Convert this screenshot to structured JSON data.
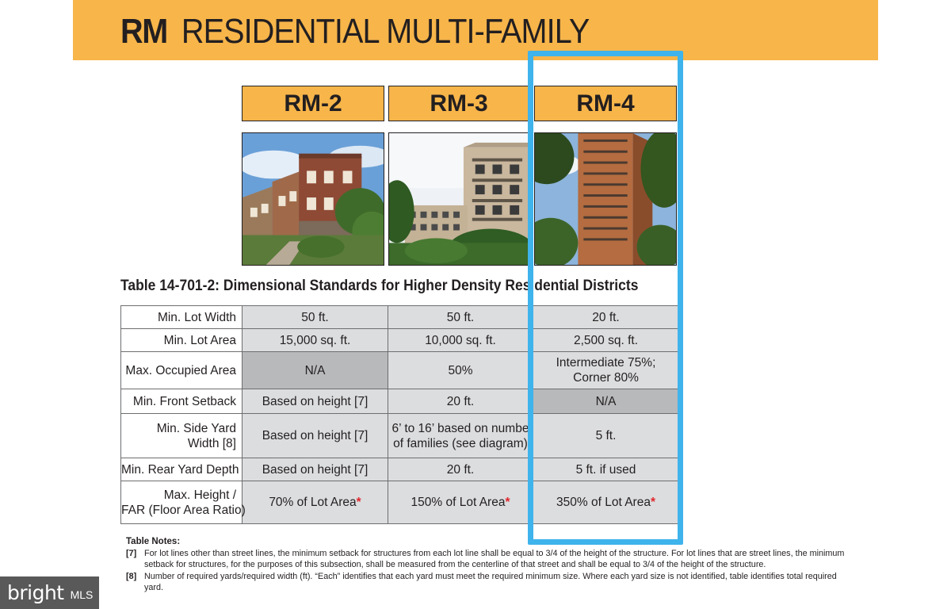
{
  "banner": {
    "abbreviation": "RM",
    "title": "RESIDENTIAL MULTI-FAMILY",
    "color": "#f7b54a"
  },
  "districts": [
    {
      "name": "RM-2",
      "photo_icon": "brick-rowhouse-photo"
    },
    {
      "name": "RM-3",
      "photo_icon": "mid-rise-apartment-photo"
    },
    {
      "name": "RM-4",
      "photo_icon": "high-rise-tower-photo"
    }
  ],
  "table": {
    "title": "Table 14-701-2: Dimensional Standards for Higher Density Residential Districts",
    "rows": [
      {
        "label": [
          "Min. Lot Width"
        ],
        "rm2": [
          "50 ft."
        ],
        "rm3": [
          "50 ft."
        ],
        "rm4": [
          "20 ft."
        ]
      },
      {
        "label": [
          "Min. Lot Area"
        ],
        "rm2": [
          "15,000 sq. ft."
        ],
        "rm3": [
          "10,000 sq. ft."
        ],
        "rm4": [
          "2,500 sq. ft."
        ]
      },
      {
        "label": [
          "Max. Occupied Area"
        ],
        "rm2": [
          "N/A"
        ],
        "rm3": [
          "50%"
        ],
        "rm4": [
          "Intermediate 75%;",
          "Corner 80%"
        ]
      },
      {
        "label": [
          "Min. Front Setback"
        ],
        "rm2": [
          "Based on height [7]"
        ],
        "rm3": [
          "20 ft."
        ],
        "rm4": [
          "N/A"
        ]
      },
      {
        "label": [
          "Min. Side Yard",
          "Width [8]"
        ],
        "rm2": [
          "Based on height [7]"
        ],
        "rm3": [
          "6’ to 16’ based on numbe",
          "of families (see diagram)"
        ],
        "rm4": [
          "5 ft."
        ]
      },
      {
        "label": [
          "Min. Rear Yard Depth"
        ],
        "rm2": [
          "Based on height [7]"
        ],
        "rm3": [
          "20 ft."
        ],
        "rm4": [
          "5 ft. if used"
        ]
      },
      {
        "label": [
          "Max. Height /",
          "FAR (Floor Area Ratio)"
        ],
        "rm2": [
          "70% of Lot Area"
        ],
        "rm3": [
          "150% of Lot Area"
        ],
        "rm4": [
          "350% of Lot Area"
        ]
      }
    ],
    "asterisk": "*"
  },
  "notes": {
    "heading": "Table Notes:",
    "items": [
      {
        "number": "[7]",
        "text": "For lot lines other than street lines, the minimum setback for structures from each lot line shall be equal to 3/4 of the height of the structure. For lot lines that are street lines, the minimum setback for structures, for the purposes of this subsection, shall be measured from the centerline of that street and shall be equal to 3/4 of the height of the structure."
      },
      {
        "number": "[8]",
        "text": "Number of required yards/required width (ft). “Each” identifies that each yard must meet the required minimum size. Where each yard size is not identified, table identifies total required yard."
      }
    ]
  },
  "highlight": {
    "color": "#3fb3eb"
  },
  "watermark": {
    "name": "bright",
    "suffix": "MLS"
  }
}
